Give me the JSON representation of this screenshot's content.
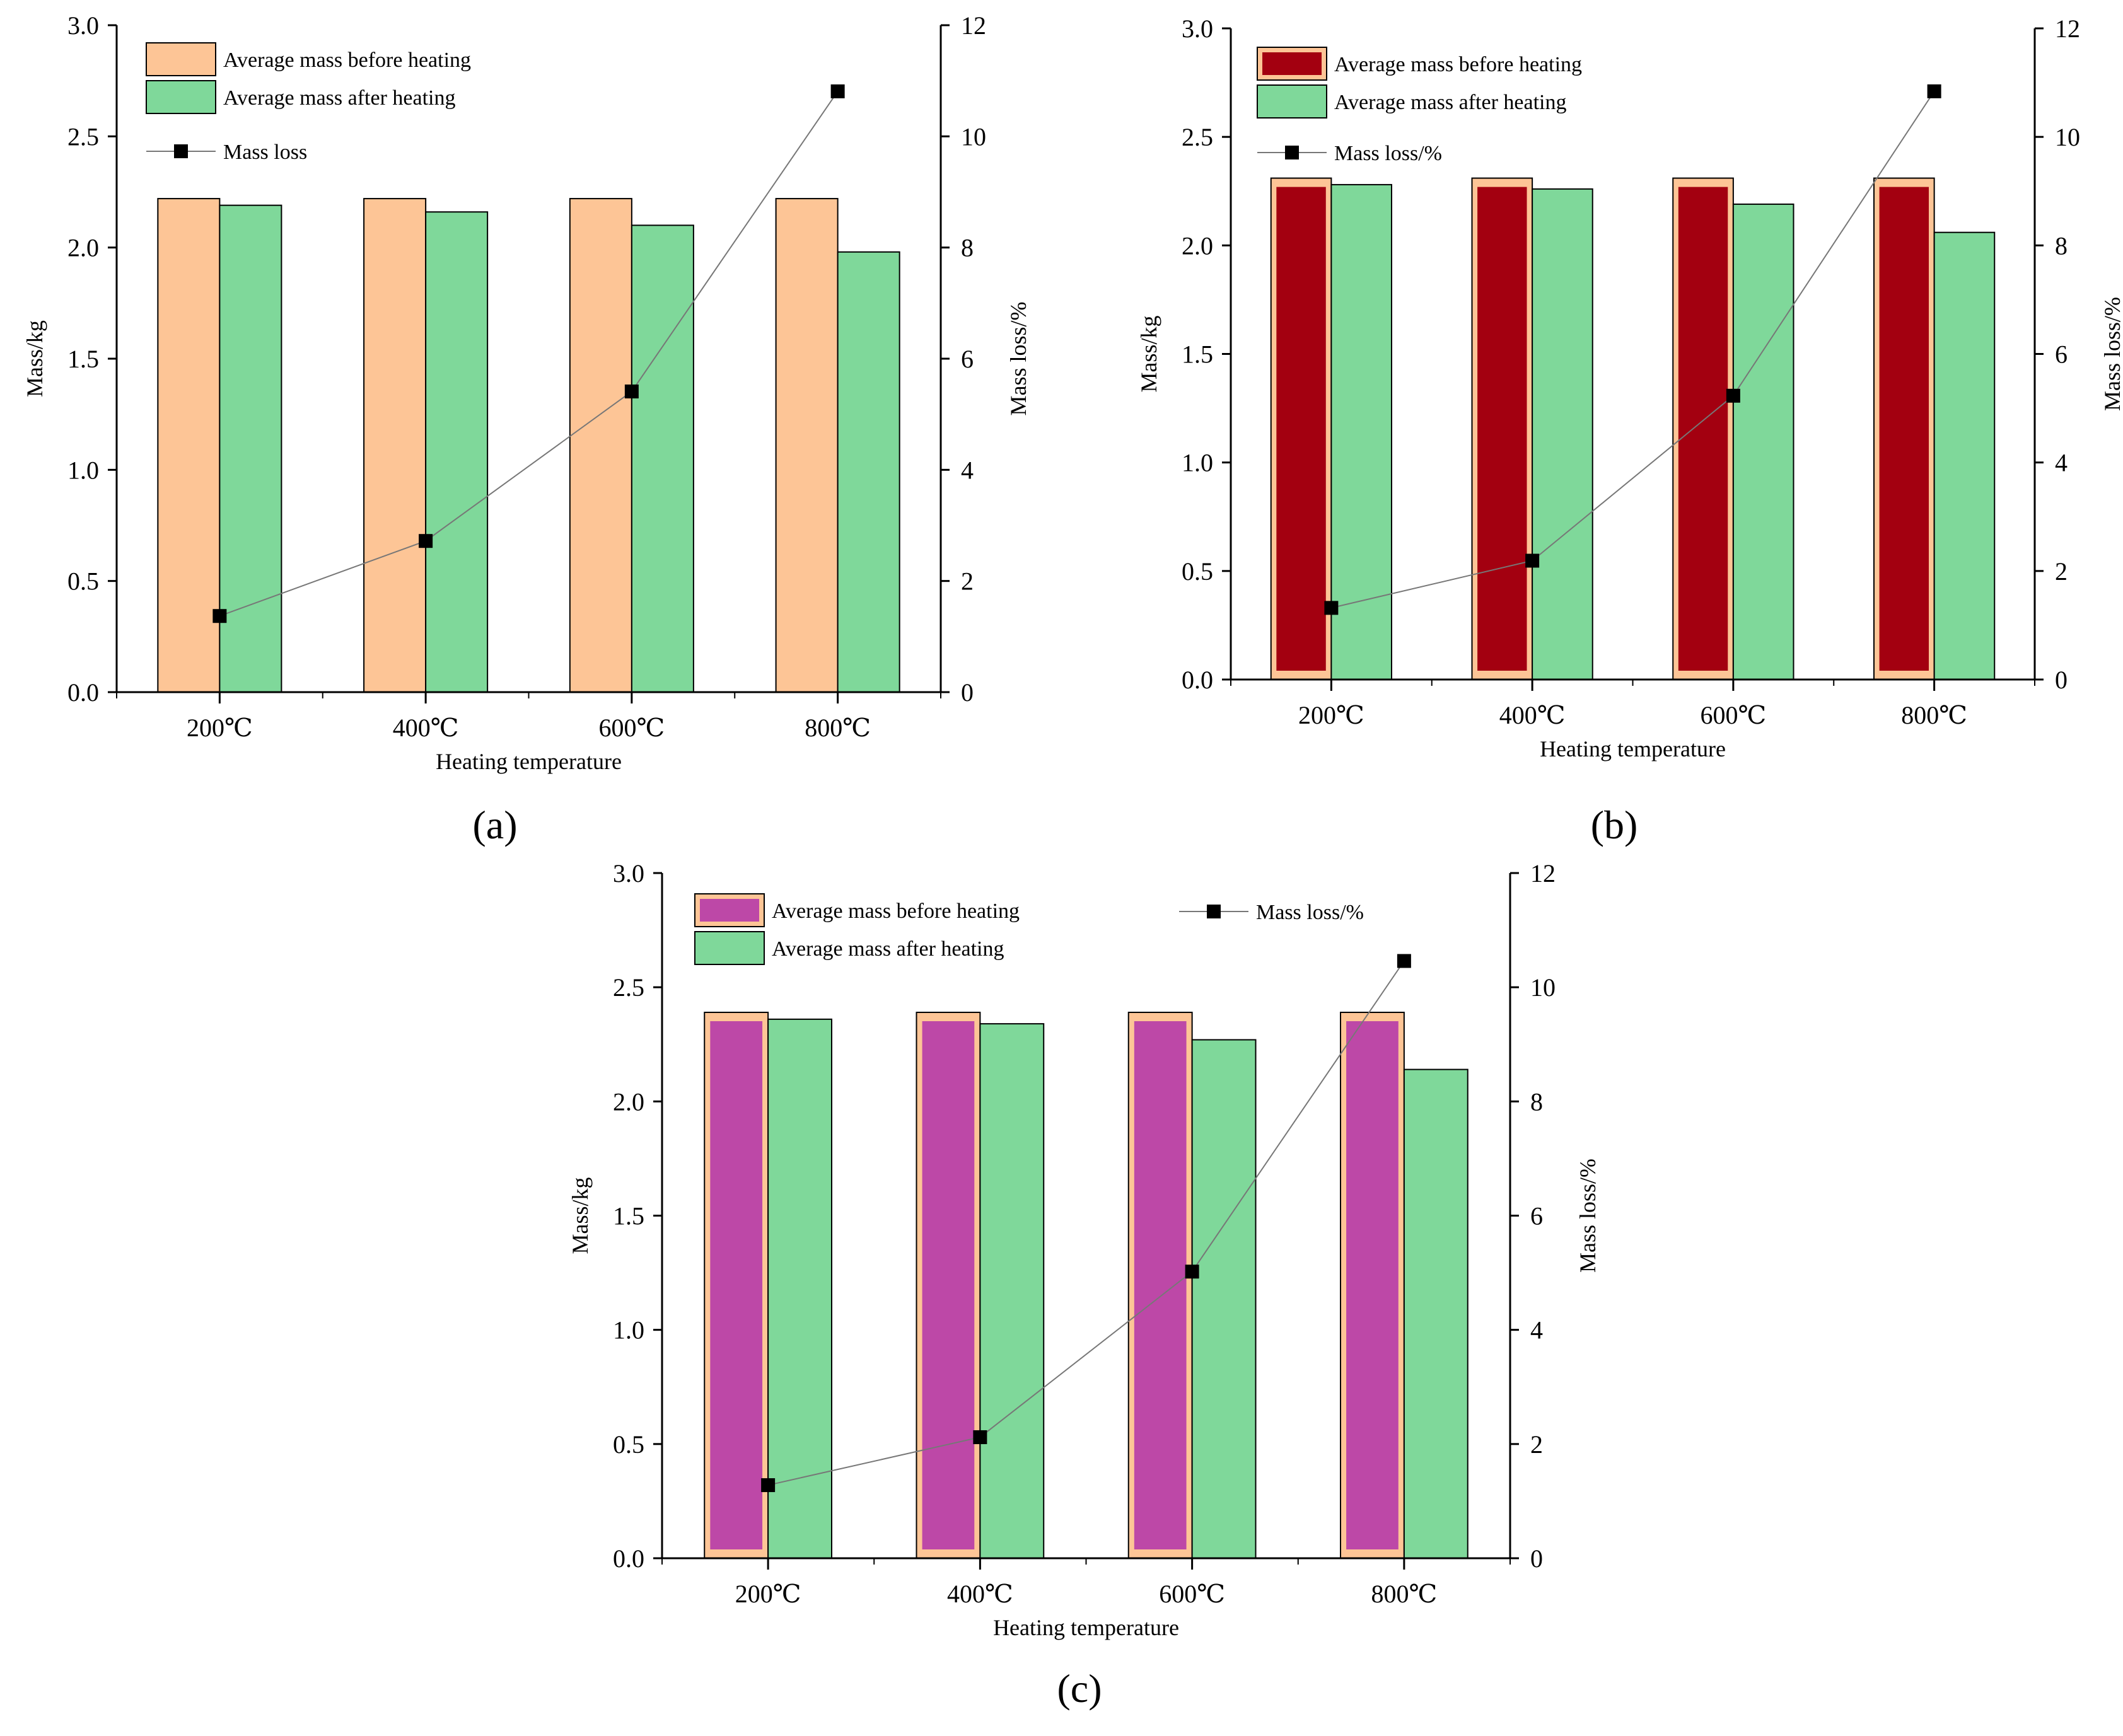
{
  "chart_data": [
    {
      "panel_label": "(a)",
      "type": "bar",
      "categories": [
        "200℃",
        "400℃",
        "600℃",
        "800℃"
      ],
      "xlabel": "Heating temperature",
      "ylabel": "Mass/kg",
      "y2label": "Mass loss/%",
      "ylim": [
        0,
        3.0
      ],
      "y2lim": [
        0,
        12
      ],
      "yticks": [
        "0.0",
        "0.5",
        "1.0",
        "1.5",
        "2.0",
        "2.5",
        "3.0"
      ],
      "y2ticks": [
        "0",
        "2",
        "4",
        "6",
        "8",
        "10",
        "12"
      ],
      "series": [
        {
          "name": "Average mass before heating",
          "type": "bar",
          "axis": "left",
          "values": [
            2.22,
            2.22,
            2.22,
            2.22
          ],
          "color": "#FDC596",
          "inner_color": null
        },
        {
          "name": "Average mass after heating",
          "type": "bar",
          "axis": "left",
          "values": [
            2.19,
            2.16,
            2.1,
            1.98
          ],
          "color": "#7FD89A",
          "inner_color": null
        },
        {
          "name": "Mass loss",
          "type": "line",
          "axis": "right",
          "values": [
            1.37,
            2.72,
            5.41,
            10.81
          ],
          "color": "#000000"
        }
      ],
      "legend_placement": "top-left",
      "grid": false
    },
    {
      "panel_label": "(b)",
      "type": "bar",
      "categories": [
        "200℃",
        "400℃",
        "600℃",
        "800℃"
      ],
      "xlabel": "Heating temperature",
      "ylabel": "Mass/kg",
      "y2label": "Mass loss/%",
      "ylim": [
        0,
        3.0
      ],
      "y2lim": [
        0,
        12
      ],
      "yticks": [
        "0.0",
        "0.5",
        "1.0",
        "1.5",
        "2.0",
        "2.5",
        "3.0"
      ],
      "y2ticks": [
        "0",
        "2",
        "4",
        "6",
        "8",
        "10",
        "12"
      ],
      "series": [
        {
          "name": "Average mass before heating",
          "type": "bar",
          "axis": "left",
          "values": [
            2.31,
            2.31,
            2.31,
            2.31
          ],
          "color": "#FDC596",
          "inner_color": "#A30010"
        },
        {
          "name": "Average mass after heating",
          "type": "bar",
          "axis": "left",
          "values": [
            2.28,
            2.26,
            2.19,
            2.06
          ],
          "color": "#7FD89A",
          "inner_color": null
        },
        {
          "name": "Mass loss/%",
          "type": "line",
          "axis": "right",
          "values": [
            1.32,
            2.19,
            5.23,
            10.84
          ],
          "color": "#000000"
        }
      ],
      "legend_placement": "top-left",
      "grid": false
    },
    {
      "panel_label": "(c)",
      "type": "bar",
      "categories": [
        "200℃",
        "400℃",
        "600℃",
        "800℃"
      ],
      "xlabel": "Heating temperature",
      "ylabel": "Mass/kg",
      "y2label": "Mass loss/%",
      "ylim": [
        0,
        3.0
      ],
      "y2lim": [
        0,
        12
      ],
      "yticks": [
        "0.0",
        "0.5",
        "1.0",
        "1.5",
        "2.0",
        "2.5",
        "3.0"
      ],
      "y2ticks": [
        "0",
        "2",
        "4",
        "6",
        "8",
        "10",
        "12"
      ],
      "series": [
        {
          "name": "Average mass before heating",
          "type": "bar",
          "axis": "left",
          "values": [
            2.39,
            2.39,
            2.39,
            2.39
          ],
          "color": "#FDC596",
          "inner_color": "#BD48A7"
        },
        {
          "name": "Average mass after heating",
          "type": "bar",
          "axis": "left",
          "values": [
            2.36,
            2.34,
            2.27,
            2.14
          ],
          "color": "#7FD89A",
          "inner_color": null
        },
        {
          "name": "Mass loss/%",
          "type": "line",
          "axis": "right",
          "values": [
            1.28,
            2.12,
            5.02,
            10.46
          ],
          "color": "#000000"
        }
      ],
      "legend_placement": "top",
      "grid": false
    }
  ]
}
